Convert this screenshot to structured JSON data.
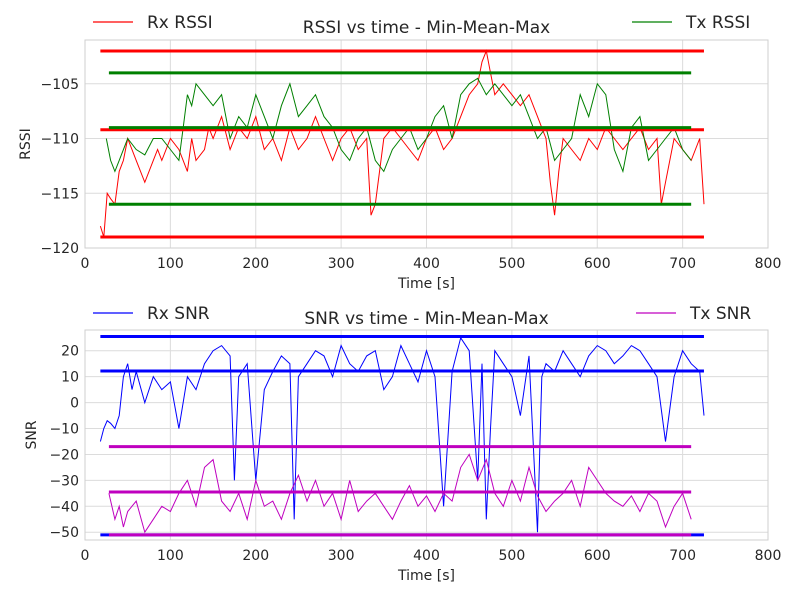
{
  "chart_data": [
    {
      "type": "line",
      "title": "RSSI vs time - Min-Mean-Max",
      "xlabel": "Time [s]",
      "ylabel": "RSSI",
      "xlim": [
        0,
        800
      ],
      "ylim": [
        -120,
        -101
      ],
      "xticks": [
        0,
        100,
        200,
        300,
        400,
        500,
        600,
        700,
        800
      ],
      "yticks": [
        -120,
        -115,
        -110,
        -105
      ],
      "ytick_labels": [
        "−120",
        "−115",
        "−110",
        "−105"
      ],
      "grid": true,
      "legend": [
        {
          "name": "Rx RSSI",
          "color": "#ff0000",
          "placement": "top-left"
        },
        {
          "name": "Tx RSSI",
          "color": "#008000",
          "placement": "top-right"
        }
      ],
      "series": [
        {
          "name": "Rx RSSI",
          "color": "#ff0000",
          "x": [
            18,
            22,
            26,
            30,
            35,
            40,
            45,
            50,
            60,
            70,
            80,
            85,
            90,
            100,
            110,
            120,
            125,
            130,
            140,
            145,
            150,
            160,
            170,
            180,
            190,
            200,
            210,
            220,
            230,
            240,
            250,
            260,
            270,
            280,
            290,
            300,
            310,
            320,
            330,
            335,
            340,
            350,
            360,
            370,
            380,
            390,
            400,
            410,
            420,
            430,
            440,
            450,
            460,
            465,
            470,
            475,
            480,
            490,
            500,
            510,
            520,
            530,
            540,
            545,
            550,
            555,
            560,
            570,
            580,
            590,
            600,
            610,
            620,
            630,
            640,
            650,
            660,
            670,
            675,
            680,
            690,
            700,
            710,
            720,
            725
          ],
          "y": [
            -118,
            -119,
            -115,
            -115.5,
            -116,
            -113,
            -112,
            -110,
            -112,
            -114,
            -112,
            -111,
            -112,
            -110,
            -111,
            -113,
            -110,
            -112,
            -111,
            -109,
            -110,
            -108,
            -111,
            -109,
            -110,
            -108,
            -111,
            -110,
            -112,
            -109,
            -111,
            -110,
            -108,
            -110,
            -112,
            -110,
            -109,
            -111,
            -110,
            -117,
            -116,
            -110,
            -109,
            -110,
            -111,
            -112,
            -110,
            -109,
            -111,
            -110,
            -108,
            -106,
            -105,
            -103,
            -102,
            -104,
            -106,
            -105,
            -106,
            -107,
            -106,
            -108,
            -110,
            -114,
            -117,
            -113,
            -110,
            -111,
            -112,
            -110,
            -111,
            -109,
            -110,
            -111,
            -110,
            -109,
            -111,
            -110,
            -116,
            -114,
            -110,
            -111,
            -112,
            -110,
            -116
          ]
        },
        {
          "name": "Tx RSSI",
          "color": "#008000",
          "x": [
            25,
            30,
            35,
            40,
            50,
            60,
            70,
            80,
            90,
            100,
            110,
            115,
            120,
            125,
            130,
            140,
            150,
            160,
            170,
            180,
            190,
            200,
            210,
            220,
            230,
            240,
            250,
            260,
            270,
            280,
            290,
            300,
            310,
            320,
            330,
            340,
            350,
            360,
            370,
            380,
            390,
            400,
            410,
            420,
            430,
            440,
            450,
            460,
            470,
            480,
            490,
            500,
            510,
            520,
            530,
            540,
            550,
            560,
            570,
            580,
            590,
            600,
            610,
            620,
            630,
            640,
            650,
            660,
            670,
            680,
            690,
            700,
            710
          ],
          "y": [
            -110,
            -112,
            -113,
            -112,
            -110,
            -111,
            -111.5,
            -110,
            -110,
            -111,
            -112,
            -109,
            -106,
            -107,
            -105,
            -106,
            -107,
            -106,
            -110,
            -108,
            -109,
            -106,
            -108,
            -110,
            -107,
            -105,
            -108,
            -107,
            -106,
            -108,
            -109,
            -111,
            -112,
            -110,
            -109,
            -112,
            -113,
            -111,
            -110,
            -109,
            -111,
            -110,
            -108,
            -107,
            -110,
            -106,
            -105,
            -104.5,
            -106,
            -105,
            -106,
            -107,
            -106,
            -108,
            -110,
            -109,
            -112,
            -111,
            -110,
            -106,
            -108,
            -105,
            -106,
            -111,
            -113,
            -109,
            -108,
            -112,
            -111,
            -110,
            -109,
            -111,
            -112
          ]
        }
      ],
      "reference_lines": [
        {
          "name": "Rx RSSI max",
          "color": "#ff0000",
          "y": -102,
          "x": [
            18,
            725
          ]
        },
        {
          "name": "Rx RSSI mean",
          "color": "#ff0000",
          "y": -109.2,
          "x": [
            18,
            725
          ]
        },
        {
          "name": "Rx RSSI min",
          "color": "#ff0000",
          "y": -119,
          "x": [
            18,
            725
          ]
        },
        {
          "name": "Tx RSSI max",
          "color": "#008000",
          "y": -104,
          "x": [
            28,
            710
          ]
        },
        {
          "name": "Tx RSSI mean",
          "color": "#008000",
          "y": -109,
          "x": [
            28,
            710
          ]
        },
        {
          "name": "Tx RSSI min",
          "color": "#008000",
          "y": -116,
          "x": [
            28,
            710
          ]
        }
      ]
    },
    {
      "type": "line",
      "title": "SNR vs time - Min-Mean-Max",
      "xlabel": "Time [s]",
      "ylabel": "SNR",
      "xlim": [
        0,
        800
      ],
      "ylim": [
        -53,
        28
      ],
      "xticks": [
        0,
        100,
        200,
        300,
        400,
        500,
        600,
        700,
        800
      ],
      "yticks": [
        -50,
        -40,
        -30,
        -20,
        -10,
        0,
        10,
        20
      ],
      "ytick_labels": [
        "−50",
        "−40",
        "−30",
        "−20",
        "−10",
        "0",
        "10",
        "20"
      ],
      "grid": true,
      "legend": [
        {
          "name": "Rx SNR",
          "color": "#0000ff",
          "placement": "top-left"
        },
        {
          "name": "Tx SNR",
          "color": "#bf00bf",
          "placement": "top-right"
        }
      ],
      "series": [
        {
          "name": "Rx SNR",
          "color": "#0000ff",
          "x": [
            18,
            22,
            26,
            30,
            35,
            40,
            45,
            50,
            55,
            60,
            70,
            80,
            90,
            100,
            110,
            120,
            130,
            140,
            150,
            160,
            170,
            175,
            180,
            190,
            200,
            210,
            220,
            230,
            240,
            245,
            250,
            260,
            270,
            280,
            290,
            300,
            310,
            320,
            330,
            340,
            350,
            360,
            370,
            380,
            390,
            400,
            410,
            420,
            430,
            440,
            450,
            460,
            465,
            470,
            475,
            480,
            490,
            500,
            510,
            520,
            530,
            535,
            540,
            550,
            560,
            570,
            580,
            590,
            600,
            610,
            620,
            630,
            640,
            650,
            660,
            670,
            680,
            690,
            700,
            710,
            720,
            725
          ],
          "y": [
            -15,
            -10,
            -7,
            -8,
            -10,
            -5,
            10,
            15,
            5,
            12,
            0,
            10,
            5,
            8,
            -10,
            10,
            5,
            15,
            20,
            22,
            18,
            -30,
            10,
            15,
            -30,
            5,
            12,
            18,
            15,
            -45,
            10,
            15,
            20,
            18,
            10,
            22,
            15,
            12,
            18,
            20,
            5,
            10,
            22,
            15,
            8,
            20,
            10,
            -40,
            12,
            25,
            20,
            -30,
            15,
            -45,
            -10,
            20,
            15,
            10,
            -5,
            18,
            -50,
            10,
            15,
            12,
            20,
            15,
            10,
            18,
            22,
            20,
            15,
            18,
            22,
            20,
            15,
            10,
            -15,
            10,
            20,
            15,
            12,
            -5
          ]
        },
        {
          "name": "Tx SNR",
          "color": "#bf00bf",
          "x": [
            28,
            35,
            40,
            45,
            50,
            60,
            70,
            80,
            90,
            100,
            110,
            120,
            130,
            140,
            150,
            160,
            170,
            180,
            190,
            200,
            210,
            220,
            230,
            240,
            250,
            260,
            270,
            280,
            290,
            300,
            310,
            320,
            330,
            340,
            350,
            360,
            370,
            380,
            390,
            400,
            410,
            420,
            430,
            440,
            450,
            460,
            470,
            480,
            490,
            500,
            510,
            520,
            530,
            540,
            550,
            560,
            570,
            580,
            590,
            600,
            610,
            620,
            630,
            640,
            650,
            660,
            670,
            680,
            690,
            700,
            710
          ],
          "y": [
            -35,
            -45,
            -40,
            -48,
            -42,
            -38,
            -50,
            -45,
            -40,
            -42,
            -35,
            -30,
            -40,
            -25,
            -22,
            -38,
            -42,
            -35,
            -45,
            -30,
            -40,
            -38,
            -45,
            -35,
            -28,
            -38,
            -30,
            -40,
            -35,
            -45,
            -30,
            -42,
            -38,
            -35,
            -40,
            -45,
            -38,
            -32,
            -40,
            -36,
            -42,
            -35,
            -38,
            -25,
            -20,
            -30,
            -22,
            -35,
            -40,
            -30,
            -38,
            -25,
            -36,
            -42,
            -38,
            -35,
            -30,
            -40,
            -25,
            -30,
            -35,
            -38,
            -40,
            -36,
            -42,
            -35,
            -38,
            -48,
            -40,
            -35,
            -45
          ]
        }
      ],
      "reference_lines": [
        {
          "name": "Rx SNR max",
          "color": "#0000ff",
          "y": 25.5,
          "x": [
            18,
            725
          ]
        },
        {
          "name": "Rx SNR mean",
          "color": "#0000ff",
          "y": 12.2,
          "x": [
            18,
            725
          ]
        },
        {
          "name": "Rx SNR min",
          "color": "#0000ff",
          "y": -51,
          "x": [
            18,
            725
          ]
        },
        {
          "name": "Tx SNR max",
          "color": "#bf00bf",
          "y": -17,
          "x": [
            28,
            710
          ]
        },
        {
          "name": "Tx SNR mean",
          "color": "#bf00bf",
          "y": -34.5,
          "x": [
            28,
            710
          ]
        },
        {
          "name": "Tx SNR min",
          "color": "#bf00bf",
          "y": -51,
          "x": [
            28,
            710
          ]
        }
      ]
    }
  ]
}
